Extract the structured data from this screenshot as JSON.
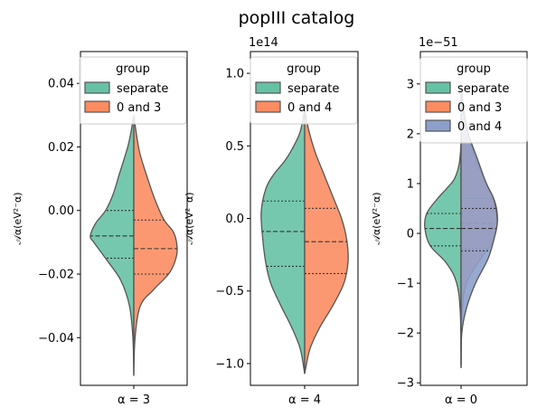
{
  "title": "popIII catalog",
  "colors": {
    "separate": "#66c2a5",
    "pair": "#fc8d62",
    "third": "#8da0cb",
    "edge": "#555555"
  },
  "chart_data": [
    {
      "type": "violin",
      "xlabel": "α = 3",
      "ylabel": "𝒜α(eV²⁻α)",
      "multiplier": "",
      "ylim": [
        -0.055,
        0.05
      ],
      "yticks": [
        -0.04,
        -0.02,
        0.0,
        0.02,
        0.04
      ],
      "yticklabels": [
        "−0.04",
        "−0.02",
        "0.00",
        "0.02",
        "0.04"
      ],
      "legend_title": "group",
      "legend_placement": "top-right",
      "series": [
        {
          "name": "separate",
          "color_key": "separate",
          "side": "left",
          "quartiles": [
            -0.015,
            -0.008,
            0.0
          ],
          "profile": [
            [
              -0.052,
              0
            ],
            [
              -0.04,
              0.02
            ],
            [
              -0.03,
              0.1
            ],
            [
              -0.022,
              0.3
            ],
            [
              -0.016,
              0.6
            ],
            [
              -0.01,
              0.92
            ],
            [
              -0.008,
              1.0
            ],
            [
              -0.004,
              0.88
            ],
            [
              0.0,
              0.65
            ],
            [
              0.005,
              0.48
            ],
            [
              0.012,
              0.32
            ],
            [
              0.02,
              0.14
            ],
            [
              0.025,
              0.06
            ],
            [
              0.03,
              0.0
            ]
          ]
        },
        {
          "name": "0 and 3",
          "color_key": "pair",
          "side": "right",
          "quartiles": [
            -0.02,
            -0.012,
            -0.003
          ],
          "profile": [
            [
              -0.052,
              0
            ],
            [
              -0.04,
              0.03
            ],
            [
              -0.03,
              0.15
            ],
            [
              -0.025,
              0.45
            ],
            [
              -0.02,
              0.8
            ],
            [
              -0.016,
              0.95
            ],
            [
              -0.012,
              1.0
            ],
            [
              -0.007,
              0.92
            ],
            [
              -0.003,
              0.7
            ],
            [
              0.003,
              0.5
            ],
            [
              0.01,
              0.32
            ],
            [
              0.018,
              0.14
            ],
            [
              0.025,
              0.05
            ],
            [
              0.03,
              0.0
            ]
          ]
        }
      ]
    },
    {
      "type": "violin",
      "xlabel": "α = 4",
      "ylabel": "𝒜α(eV²⁻α)",
      "multiplier": "1e14",
      "ylim": [
        -1.15,
        1.15
      ],
      "yticks": [
        -1.0,
        -0.5,
        0.0,
        0.5,
        1.0
      ],
      "yticklabels": [
        "−1.0",
        "−0.5",
        "0.0",
        "0.5",
        "1.0"
      ],
      "legend_title": "group",
      "legend_placement": "top-right",
      "series": [
        {
          "name": "separate",
          "color_key": "separate",
          "side": "left",
          "quartiles": [
            -0.33,
            -0.09,
            0.12
          ],
          "profile": [
            [
              -1.07,
              0
            ],
            [
              -0.9,
              0.1
            ],
            [
              -0.75,
              0.3
            ],
            [
              -0.6,
              0.55
            ],
            [
              -0.45,
              0.78
            ],
            [
              -0.3,
              0.9
            ],
            [
              -0.1,
              0.98
            ],
            [
              0.05,
              1.0
            ],
            [
              0.2,
              0.9
            ],
            [
              0.3,
              0.72
            ],
            [
              0.4,
              0.45
            ],
            [
              0.5,
              0.25
            ],
            [
              0.6,
              0.1
            ],
            [
              0.75,
              0.0
            ]
          ]
        },
        {
          "name": "0 and 4",
          "color_key": "pair",
          "side": "right",
          "quartiles": [
            -0.38,
            -0.16,
            0.07
          ],
          "profile": [
            [
              -1.07,
              0
            ],
            [
              -0.9,
              0.12
            ],
            [
              -0.75,
              0.35
            ],
            [
              -0.6,
              0.65
            ],
            [
              -0.45,
              0.9
            ],
            [
              -0.3,
              1.0
            ],
            [
              -0.15,
              0.97
            ],
            [
              0.0,
              0.85
            ],
            [
              0.15,
              0.65
            ],
            [
              0.3,
              0.45
            ],
            [
              0.45,
              0.25
            ],
            [
              0.6,
              0.1
            ],
            [
              0.75,
              0.0
            ]
          ]
        }
      ]
    },
    {
      "type": "violin",
      "xlabel": "α = 0",
      "ylabel": "𝒜α(eV²⁻α)",
      "multiplier": "1e−51",
      "ylim": [
        -3.05,
        3.65
      ],
      "yticks": [
        -3,
        -2,
        -1,
        0,
        1,
        2,
        3
      ],
      "yticklabels": [
        "−3",
        "−2",
        "−1",
        "0",
        "1",
        "2",
        "3"
      ],
      "legend_title": "group",
      "legend_placement": "top-right",
      "series": [
        {
          "name": "separate",
          "color_key": "separate",
          "side": "left",
          "quartiles": [
            -0.25,
            0.1,
            0.4
          ],
          "profile": [
            [
              -2.7,
              0
            ],
            [
              -1.6,
              0.02
            ],
            [
              -1.0,
              0.12
            ],
            [
              -0.6,
              0.4
            ],
            [
              -0.25,
              0.85
            ],
            [
              0.1,
              1.0
            ],
            [
              0.4,
              0.95
            ],
            [
              0.7,
              0.65
            ],
            [
              0.9,
              0.4
            ],
            [
              1.1,
              0.18
            ],
            [
              1.4,
              0.05
            ],
            [
              1.8,
              0.0
            ]
          ]
        },
        {
          "name": "0 and 3",
          "color_key": "pair",
          "side": "right",
          "quartiles": [
            -0.3,
            0.2,
            0.7
          ],
          "profile": [
            [
              -2.7,
              0
            ],
            [
              -1.6,
              0.03
            ],
            [
              -1.0,
              0.15
            ],
            [
              -0.5,
              0.55
            ],
            [
              -0.2,
              0.85
            ],
            [
              0.2,
              1.0
            ],
            [
              0.6,
              0.95
            ],
            [
              1.0,
              0.7
            ],
            [
              1.5,
              0.4
            ],
            [
              2.0,
              0.2
            ],
            [
              2.5,
              0.07
            ],
            [
              3.0,
              0.0
            ]
          ]
        },
        {
          "name": "0 and 4",
          "color_key": "third",
          "side": "right",
          "quartiles": [
            -0.35,
            0.1,
            0.5
          ],
          "profile": [
            [
              -2.65,
              0
            ],
            [
              -2.0,
              0.02
            ],
            [
              -1.5,
              0.15
            ],
            [
              -1.0,
              0.4
            ],
            [
              -0.5,
              0.75
            ],
            [
              0.0,
              0.95
            ],
            [
              0.3,
              1.0
            ],
            [
              0.7,
              0.9
            ],
            [
              1.0,
              0.7
            ],
            [
              1.5,
              0.45
            ],
            [
              2.0,
              0.2
            ],
            [
              2.5,
              0.05
            ],
            [
              2.8,
              0.0
            ]
          ]
        }
      ]
    }
  ]
}
